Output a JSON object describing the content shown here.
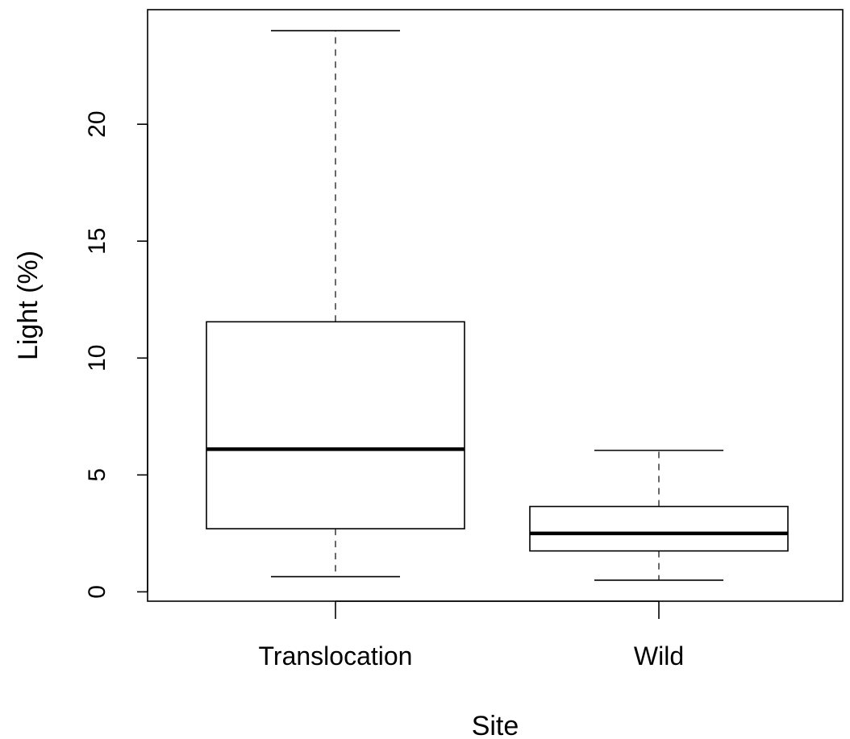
{
  "chart_data": {
    "type": "boxplot",
    "title": "",
    "xlabel": "Site",
    "ylabel": "Light (%)",
    "ylim": [
      -0.4,
      24.9
    ],
    "yticks": [
      0,
      5,
      10,
      15,
      20
    ],
    "categories": [
      "Translocation",
      "Wild"
    ],
    "boxes": [
      {
        "category": "Translocation",
        "whisker_low": 0.65,
        "q1": 2.7,
        "median": 6.1,
        "q3": 11.55,
        "whisker_high": 24.0
      },
      {
        "category": "Wild",
        "whisker_low": 0.5,
        "q1": 1.75,
        "median": 2.5,
        "q3": 3.65,
        "whisker_high": 6.05
      }
    ],
    "grid": false
  }
}
